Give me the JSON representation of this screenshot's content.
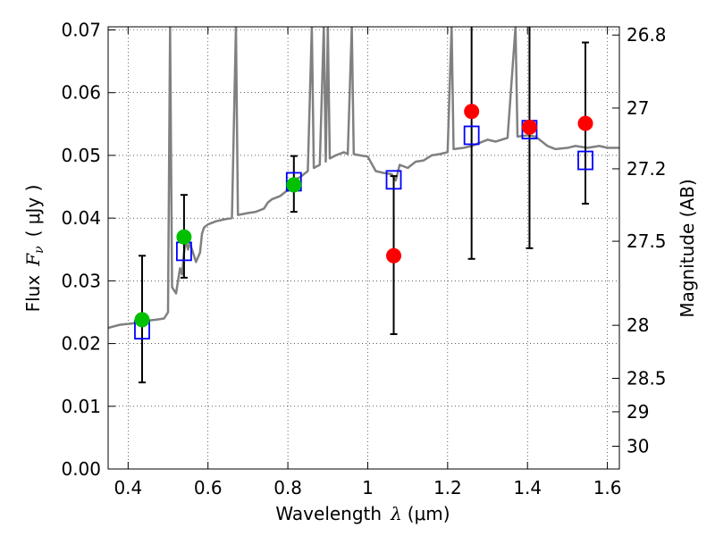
{
  "chart_data": {
    "type": "scatter",
    "title": "",
    "xlabel": "Wavelength",
    "xlabel_symbol": "λ",
    "xlabel_unit": "(μm)",
    "ylabel": "Flux",
    "ylabel_symbol": "F",
    "ylabel_sub": "ν",
    "ylabel_unit": "( μJy )",
    "ylabel_right": "Magnitude (AB)",
    "xlim": [
      0.35,
      1.63
    ],
    "ylim": [
      0.0,
      0.0705
    ],
    "grid": true,
    "x_ticks": [
      0.4,
      0.6,
      0.8,
      1.0,
      1.2,
      1.4,
      1.6
    ],
    "x_tick_labels": [
      "0.4",
      "0.6",
      "0.8",
      "1",
      "1.2",
      "1.4",
      "1.6"
    ],
    "y_ticks": [
      0.0,
      0.01,
      0.02,
      0.03,
      0.04,
      0.05,
      0.06,
      0.07
    ],
    "y_tick_labels": [
      "0.00",
      "0.01",
      "0.02",
      "0.03",
      "0.04",
      "0.05",
      "0.06",
      "0.07"
    ],
    "right_ticks": [
      26.8,
      27.0,
      27.2,
      27.5,
      28.0,
      28.5,
      29.0,
      30.0
    ],
    "right_tick_labels": [
      "26.8",
      "27",
      "27.2",
      "27.5",
      "28",
      "28.5",
      "29",
      "30"
    ],
    "colors": {
      "spectrum": "#808080",
      "detections": "#00c000",
      "upper_limits": "#ff0000",
      "model": "#0000ff",
      "errorbars": "#000000"
    },
    "series": [
      {
        "kind": "spectrum",
        "points": [
          [
            0.35,
            0.0225
          ],
          [
            0.38,
            0.023
          ],
          [
            0.41,
            0.0232
          ],
          [
            0.44,
            0.0236
          ],
          [
            0.47,
            0.0238
          ],
          [
            0.49,
            0.024
          ],
          [
            0.5,
            0.025
          ],
          [
            0.505,
            0.0705
          ],
          [
            0.51,
            0.029
          ],
          [
            0.52,
            0.028
          ],
          [
            0.53,
            0.032
          ],
          [
            0.535,
            0.031
          ],
          [
            0.54,
            0.0345
          ],
          [
            0.545,
            0.0365
          ],
          [
            0.55,
            0.035
          ],
          [
            0.555,
            0.036
          ],
          [
            0.56,
            0.035
          ],
          [
            0.565,
            0.034
          ],
          [
            0.57,
            0.033
          ],
          [
            0.58,
            0.0345
          ],
          [
            0.585,
            0.0375
          ],
          [
            0.59,
            0.0385
          ],
          [
            0.6,
            0.039
          ],
          [
            0.62,
            0.0395
          ],
          [
            0.64,
            0.0398
          ],
          [
            0.66,
            0.04
          ],
          [
            0.67,
            0.0705
          ],
          [
            0.675,
            0.0405
          ],
          [
            0.7,
            0.0408
          ],
          [
            0.72,
            0.041
          ],
          [
            0.74,
            0.0415
          ],
          [
            0.75,
            0.0425
          ],
          [
            0.76,
            0.043
          ],
          [
            0.78,
            0.0435
          ],
          [
            0.8,
            0.0445
          ],
          [
            0.81,
            0.046
          ],
          [
            0.83,
            0.0465
          ],
          [
            0.85,
            0.0475
          ],
          [
            0.86,
            0.0705
          ],
          [
            0.865,
            0.048
          ],
          [
            0.88,
            0.0485
          ],
          [
            0.89,
            0.0705
          ],
          [
            0.895,
            0.049
          ],
          [
            0.9,
            0.0705
          ],
          [
            0.905,
            0.0495
          ],
          [
            0.92,
            0.05
          ],
          [
            0.94,
            0.0505
          ],
          [
            0.95,
            0.0502
          ],
          [
            0.96,
            0.0705
          ],
          [
            0.965,
            0.0502
          ],
          [
            0.98,
            0.05
          ],
          [
            1.0,
            0.0498
          ],
          [
            1.02,
            0.0475
          ],
          [
            1.04,
            0.0472
          ],
          [
            1.06,
            0.047
          ],
          [
            1.07,
            0.046
          ],
          [
            1.08,
            0.0485
          ],
          [
            1.1,
            0.048
          ],
          [
            1.12,
            0.049
          ],
          [
            1.14,
            0.0492
          ],
          [
            1.16,
            0.05
          ],
          [
            1.18,
            0.0502
          ],
          [
            1.2,
            0.0505
          ],
          [
            1.21,
            0.0705
          ],
          [
            1.215,
            0.051
          ],
          [
            1.24,
            0.0512
          ],
          [
            1.26,
            0.0515
          ],
          [
            1.28,
            0.052
          ],
          [
            1.3,
            0.0525
          ],
          [
            1.32,
            0.0522
          ],
          [
            1.35,
            0.0528
          ],
          [
            1.37,
            0.0705
          ],
          [
            1.375,
            0.053
          ],
          [
            1.4,
            0.0532
          ],
          [
            1.42,
            0.053
          ],
          [
            1.45,
            0.0515
          ],
          [
            1.47,
            0.051
          ],
          [
            1.5,
            0.0512
          ],
          [
            1.52,
            0.0515
          ],
          [
            1.55,
            0.0512
          ],
          [
            1.58,
            0.0515
          ],
          [
            1.6,
            0.0512
          ],
          [
            1.63,
            0.0512
          ]
        ]
      },
      {
        "kind": "detections",
        "points": [
          {
            "x": 0.435,
            "y": 0.0238,
            "ylo": 0.0138,
            "yhi": 0.034
          },
          {
            "x": 0.54,
            "y": 0.037,
            "ylo": 0.0305,
            "yhi": 0.0437
          },
          {
            "x": 0.815,
            "y": 0.0453,
            "ylo": 0.041,
            "yhi": 0.0499
          }
        ]
      },
      {
        "kind": "upper_limits",
        "points": [
          {
            "x": 1.065,
            "y": 0.034,
            "ylo": 0.0215,
            "yhi": 0.0467
          },
          {
            "x": 1.26,
            "y": 0.057,
            "ylo": 0.0335,
            "yhi": 0.0705
          },
          {
            "x": 1.405,
            "y": 0.0545,
            "ylo": 0.0352,
            "yhi": 0.0705
          },
          {
            "x": 1.545,
            "y": 0.0551,
            "ylo": 0.0423,
            "yhi": 0.068
          }
        ]
      },
      {
        "kind": "model",
        "points": [
          {
            "x": 0.435,
            "y": 0.0222
          },
          {
            "x": 0.54,
            "y": 0.0347
          },
          {
            "x": 0.815,
            "y": 0.0458
          },
          {
            "x": 1.065,
            "y": 0.0461
          },
          {
            "x": 1.26,
            "y": 0.0532
          },
          {
            "x": 1.405,
            "y": 0.0541
          },
          {
            "x": 1.545,
            "y": 0.0492
          }
        ]
      }
    ]
  }
}
